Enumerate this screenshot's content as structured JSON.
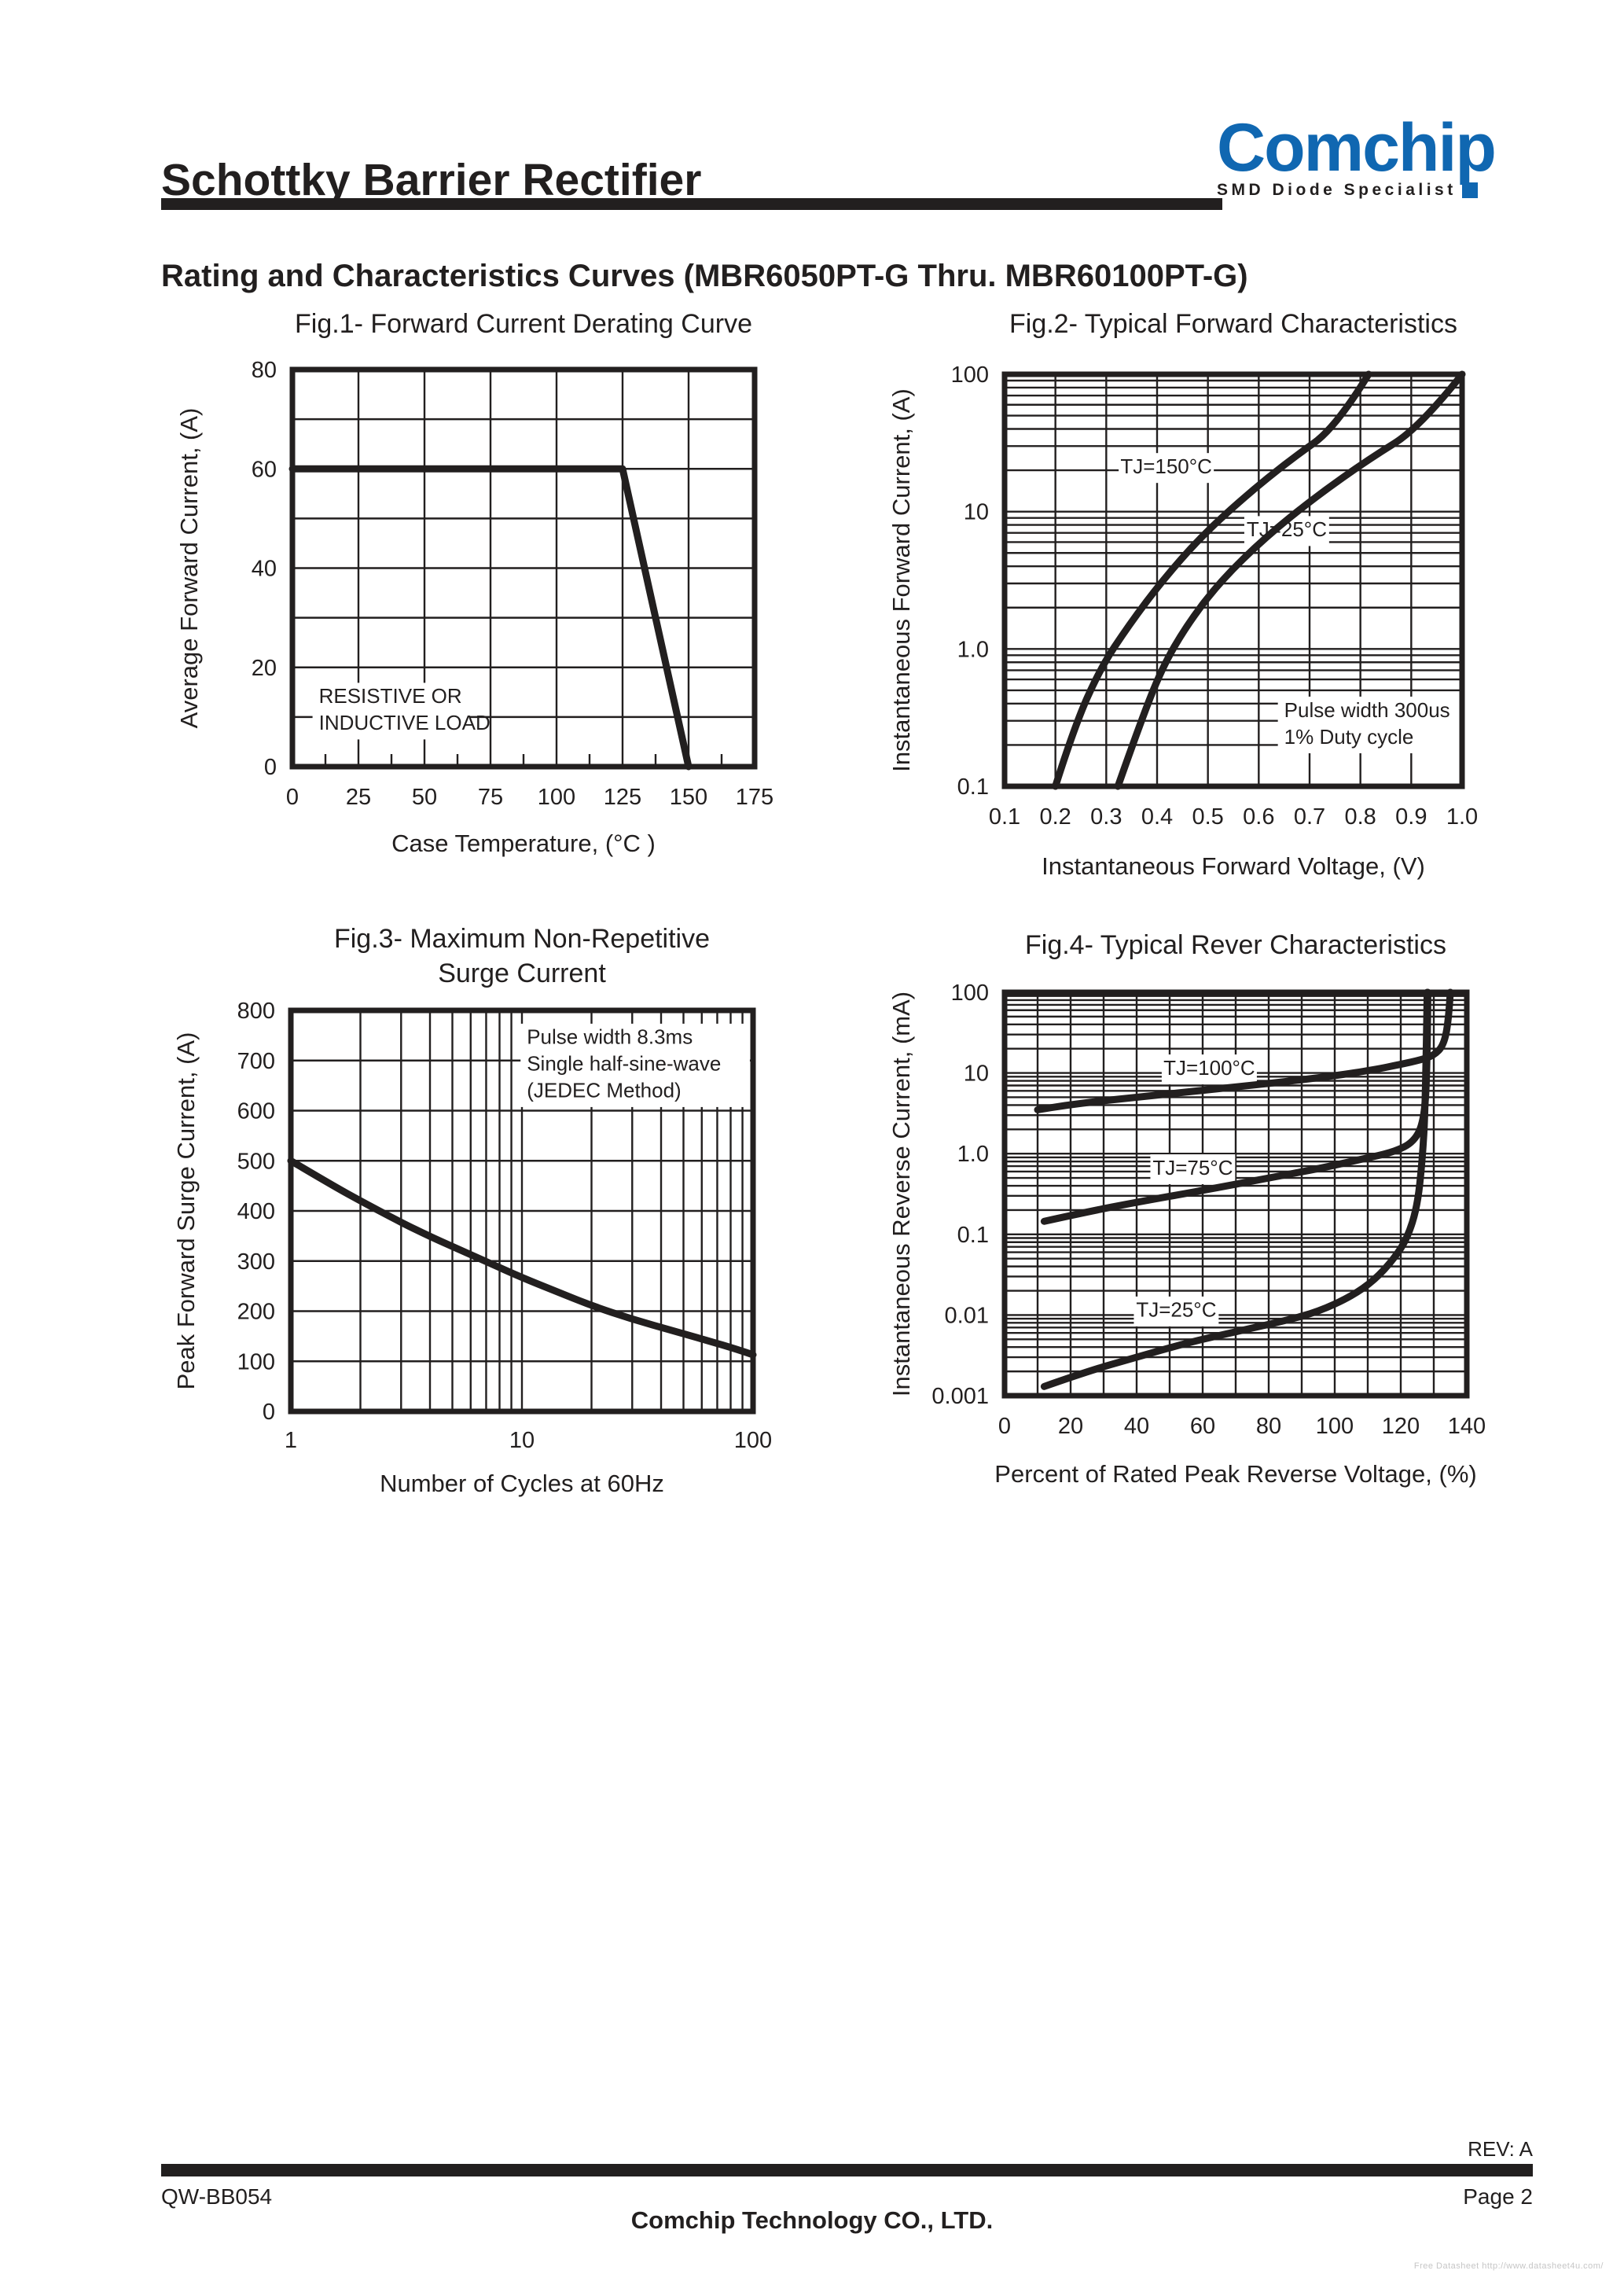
{
  "page": {
    "header": {
      "title": "Schottky Barrier Rectifier",
      "subtitle": "Rating and Characteristics Curves (MBR6050PT-G Thru. MBR60100PT-G)"
    },
    "logo": {
      "brand": "Comchip",
      "tagline": "SMD Diode Specialist"
    },
    "footer": {
      "rev": "REV: A",
      "doc_code": "QW-BB054",
      "page": "Page 2",
      "company": "Comchip Technology CO., LTD.",
      "watermark": "Free Datasheet http://www.datasheet4u.com/"
    },
    "colors": {
      "ink": "#221f1f",
      "brand_blue": "#1067B1",
      "watermark_gray": "#c6c6c6"
    }
  },
  "chart_data": [
    {
      "type": "line",
      "title": "Fig.1- Forward Current Derating Curve",
      "xlabel": "Case Temperature, (°C )",
      "ylabel": "Average Forward Current, (A)",
      "x": {
        "scale": "linear",
        "min": 0,
        "max": 175,
        "grid_step": 25,
        "minor_step": 12.5,
        "ticks": [
          {
            "v": 0,
            "label": "0"
          },
          {
            "v": 25,
            "label": "25"
          },
          {
            "v": 50,
            "label": "50"
          },
          {
            "v": 75,
            "label": "75"
          },
          {
            "v": 100,
            "label": "100"
          },
          {
            "v": 125,
            "label": "125"
          },
          {
            "v": 150,
            "label": "150"
          },
          {
            "v": 175,
            "label": "175"
          }
        ]
      },
      "y": {
        "scale": "linear",
        "min": 0,
        "max": 80,
        "grid_step": 10,
        "ticks": [
          {
            "v": 0,
            "label": "0"
          },
          {
            "v": 20,
            "label": "20"
          },
          {
            "v": 40,
            "label": "40"
          },
          {
            "v": 60,
            "label": "60"
          },
          {
            "v": 80,
            "label": "80"
          }
        ]
      },
      "series": [
        {
          "name": "average-forward-current-derating",
          "smooth": false,
          "points": [
            [
              0,
              60
            ],
            [
              125,
              60
            ],
            [
              150,
              0
            ]
          ]
        }
      ],
      "notes": [
        {
          "lines": [
            "RESISTIVE OR",
            "INDUCTIVE LOAD"
          ],
          "x": 10,
          "y": 12.8,
          "anchor": "start"
        }
      ]
    },
    {
      "type": "line",
      "title": "Fig.2- Typical Forward Characteristics",
      "xlabel": "Instantaneous Forward Voltage, (V)",
      "ylabel": "Instantaneous Forward Current, (A)",
      "x": {
        "scale": "linear",
        "min": 0.1,
        "max": 1.0,
        "grid_step": 0.1,
        "ticks": [
          {
            "v": 0.1,
            "label": "0.1"
          },
          {
            "v": 0.2,
            "label": "0.2"
          },
          {
            "v": 0.3,
            "label": "0.3"
          },
          {
            "v": 0.4,
            "label": "0.4"
          },
          {
            "v": 0.5,
            "label": "0.5"
          },
          {
            "v": 0.6,
            "label": "0.6"
          },
          {
            "v": 0.7,
            "label": "0.7"
          },
          {
            "v": 0.8,
            "label": "0.8"
          },
          {
            "v": 0.9,
            "label": "0.9"
          },
          {
            "v": 1.0,
            "label": "1.0"
          }
        ]
      },
      "y": {
        "scale": "log",
        "min": 0.1,
        "max": 100,
        "ticks": [
          {
            "v": 100,
            "label": "100"
          },
          {
            "v": 10,
            "label": "10"
          },
          {
            "v": 1,
            "label": "1.0"
          },
          {
            "v": 0.1,
            "label": "0.1"
          }
        ]
      },
      "series": [
        {
          "name": "TJ=150°C",
          "points": [
            [
              0.2,
              0.1
            ],
            [
              0.237,
              0.27
            ],
            [
              0.288,
              0.72
            ],
            [
              0.345,
              1.5
            ],
            [
              0.409,
              3.1
            ],
            [
              0.485,
              6.5
            ],
            [
              0.574,
              13
            ],
            [
              0.663,
              24
            ],
            [
              0.752,
              41
            ],
            [
              0.816,
              100
            ]
          ]
        },
        {
          "name": "TJ=25°C",
          "points": [
            [
              0.323,
              0.1
            ],
            [
              0.364,
              0.27
            ],
            [
              0.409,
              0.72
            ],
            [
              0.459,
              1.5
            ],
            [
              0.524,
              3.1
            ],
            [
              0.613,
              6.5
            ],
            [
              0.714,
              13
            ],
            [
              0.816,
              24
            ],
            [
              0.917,
              41
            ],
            [
              1.0,
              100
            ]
          ]
        }
      ],
      "notes": [
        {
          "lines": [
            "TJ=150°C"
          ],
          "x": 0.418,
          "y": 19,
          "anchor": "middle"
        },
        {
          "lines": [
            "TJ=25°C"
          ],
          "x": 0.655,
          "y": 6.6,
          "anchor": "middle"
        },
        {
          "lines": [
            "Pulse width 300us",
            "1% Duty cycle"
          ],
          "x": 0.65,
          "y": 0.32,
          "anchor": "start"
        }
      ]
    },
    {
      "type": "line",
      "title": "Fig.3- Maximum Non-Repetitive\nSurge Current",
      "xlabel": "Number of Cycles at 60Hz",
      "ylabel": "Peak Forward Surge Current, (A)",
      "x": {
        "scale": "log",
        "min": 1,
        "max": 100,
        "ticks": [
          {
            "v": 1,
            "label": "1"
          },
          {
            "v": 10,
            "label": "10"
          },
          {
            "v": 100,
            "label": "100"
          }
        ]
      },
      "y": {
        "scale": "linear",
        "min": 0,
        "max": 800,
        "grid_step": 100,
        "ticks": [
          {
            "v": 0,
            "label": "0"
          },
          {
            "v": 100,
            "label": "100"
          },
          {
            "v": 200,
            "label": "200"
          },
          {
            "v": 300,
            "label": "300"
          },
          {
            "v": 400,
            "label": "400"
          },
          {
            "v": 500,
            "label": "500"
          },
          {
            "v": 600,
            "label": "600"
          },
          {
            "v": 700,
            "label": "700"
          },
          {
            "v": 800,
            "label": "800"
          }
        ]
      },
      "series": [
        {
          "name": "peak-forward-surge-current",
          "points": [
            [
              1,
              500
            ],
            [
              1.5,
              452
            ],
            [
              2,
              420
            ],
            [
              3,
              377
            ],
            [
              4,
              349
            ],
            [
              5,
              329
            ],
            [
              7,
              299
            ],
            [
              10,
              267
            ],
            [
              14,
              240
            ],
            [
              20,
              211
            ],
            [
              30,
              184
            ],
            [
              45,
              161
            ],
            [
              65,
              140
            ],
            [
              85,
              124
            ],
            [
              100,
              113
            ]
          ]
        }
      ],
      "notes": [
        {
          "lines": [
            "Pulse width 8.3ms",
            "Single half-sine-wave",
            "(JEDEC Method)"
          ],
          "x": 10.5,
          "y": 733,
          "anchor": "start"
        }
      ]
    },
    {
      "type": "line",
      "title": "Fig.4- Typical Rever Characteristics",
      "xlabel": "Percent of Rated Peak Reverse Voltage, (%)",
      "ylabel": "Instantaneous Reverse Current, (mA)",
      "x": {
        "scale": "linear",
        "min": 0,
        "max": 140,
        "grid_step": 10,
        "ticks": [
          {
            "v": 0,
            "label": "0"
          },
          {
            "v": 20,
            "label": "20"
          },
          {
            "v": 40,
            "label": "40"
          },
          {
            "v": 60,
            "label": "60"
          },
          {
            "v": 80,
            "label": "80"
          },
          {
            "v": 100,
            "label": "100"
          },
          {
            "v": 120,
            "label": "120"
          },
          {
            "v": 140,
            "label": "140"
          }
        ]
      },
      "y": {
        "scale": "log",
        "min": 0.001,
        "max": 100,
        "ticks": [
          {
            "v": 100,
            "label": "100"
          },
          {
            "v": 10,
            "label": "10"
          },
          {
            "v": 1,
            "label": "1.0"
          },
          {
            "v": 0.1,
            "label": "0.1"
          },
          {
            "v": 0.01,
            "label": "0.01"
          },
          {
            "v": 0.001,
            "label": "0.001"
          }
        ]
      },
      "series": [
        {
          "name": "TJ=100°C",
          "points": [
            [
              10,
              3.5
            ],
            [
              20,
              4.1
            ],
            [
              40,
              5.0
            ],
            [
              60,
              6.1
            ],
            [
              80,
              7.4
            ],
            [
              100,
              9.2
            ],
            [
              112,
              11
            ],
            [
              120,
              12.8
            ],
            [
              126,
              14.5
            ],
            [
              130,
              16.5
            ],
            [
              133,
              22
            ],
            [
              134.5,
              45
            ],
            [
              135,
              100
            ]
          ]
        },
        {
          "name": "TJ=75°C",
          "points": [
            [
              12,
              0.145
            ],
            [
              25,
              0.19
            ],
            [
              40,
              0.25
            ],
            [
              60,
              0.35
            ],
            [
              80,
              0.5
            ],
            [
              95,
              0.65
            ],
            [
              108,
              0.85
            ],
            [
              118,
              1.05
            ],
            [
              124,
              1.4
            ],
            [
              127,
              2.5
            ],
            [
              128,
              10
            ],
            [
              128.2,
              100
            ]
          ]
        },
        {
          "name": "TJ=25°C",
          "points": [
            [
              12,
              0.0013
            ],
            [
              25,
              0.002
            ],
            [
              40,
              0.003
            ],
            [
              55,
              0.0045
            ],
            [
              70,
              0.0062
            ],
            [
              85,
              0.0085
            ],
            [
              95,
              0.011
            ],
            [
              105,
              0.017
            ],
            [
              112,
              0.027
            ],
            [
              118,
              0.05
            ],
            [
              122,
              0.09
            ],
            [
              125,
              0.22
            ],
            [
              126.5,
              0.8
            ],
            [
              127.5,
              4
            ],
            [
              128,
              100
            ]
          ]
        }
      ],
      "notes": [
        {
          "lines": [
            "TJ=100°C"
          ],
          "x": 62,
          "y": 9.5,
          "anchor": "middle"
        },
        {
          "lines": [
            "TJ=75°C"
          ],
          "x": 57,
          "y": 0.55,
          "anchor": "middle"
        },
        {
          "lines": [
            "TJ=25°C"
          ],
          "x": 52,
          "y": 0.0095,
          "anchor": "middle"
        }
      ]
    }
  ]
}
